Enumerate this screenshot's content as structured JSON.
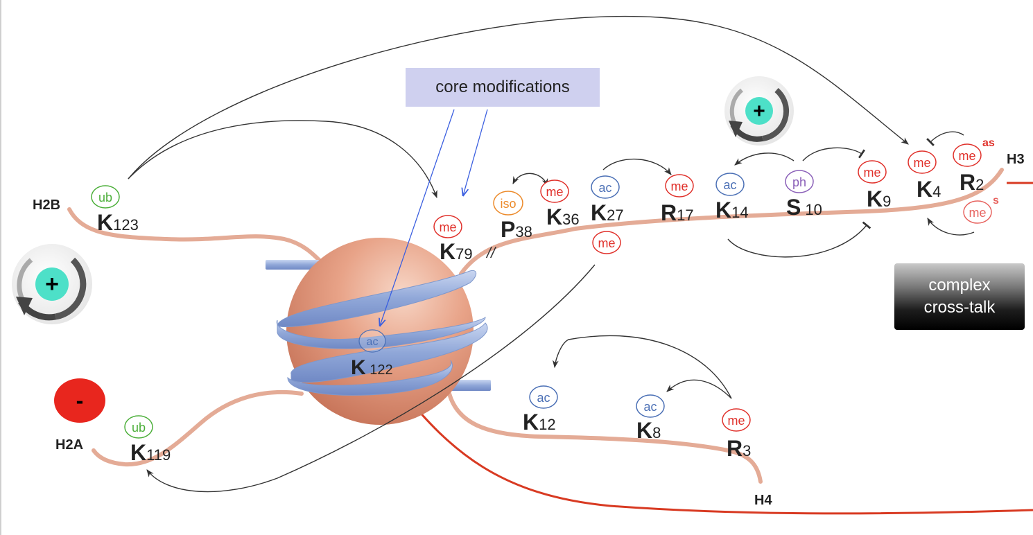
{
  "boxes": {
    "core_modifications": "core modifications",
    "complex_line1": "complex",
    "complex_line2": "cross-talk"
  },
  "histones": {
    "h2b": "H2B",
    "h3": "H3",
    "h2a": "H2A",
    "h4": "H4"
  },
  "signs": {
    "plus": "+",
    "minus": "-"
  },
  "residues": {
    "h2b_k123": {
      "letter": "K",
      "num": "123",
      "mod": "ub"
    },
    "h2a_k119": {
      "letter": "K",
      "num": "119",
      "mod": "ub"
    },
    "h3_k79": {
      "letter": "K",
      "num": "79",
      "mod": "me"
    },
    "h3_k122": {
      "letter": "K",
      "num": " 122",
      "mod": "ac"
    },
    "h3_p38": {
      "letter": "P",
      "num": "38",
      "mod": "iso"
    },
    "h3_k36": {
      "letter": "K",
      "num": "36",
      "mod": "me"
    },
    "h3_k27": {
      "letter": "K",
      "num": "27",
      "mod": "ac",
      "mod2": "me"
    },
    "h3_r17": {
      "letter": "R",
      "num": "17",
      "mod": "me"
    },
    "h3_k14": {
      "letter": "K",
      "num": "14",
      "mod": "ac"
    },
    "h3_s10": {
      "letter": "S",
      "num": "10",
      "mod": "ph"
    },
    "h3_k9": {
      "letter": "K",
      "num": "9",
      "mod": "me"
    },
    "h3_k4": {
      "letter": "K",
      "num": "4",
      "mod": "me"
    },
    "h3_r2": {
      "letter": "R",
      "num": "2",
      "mod": "me",
      "mod_sup": "as",
      "mod2": "me",
      "mod2_sup": "s"
    },
    "h4_k12": {
      "letter": "K",
      "num": "12",
      "mod": "ac"
    },
    "h4_k8": {
      "letter": "K",
      "num": "8",
      "mod": "ac"
    },
    "h4_r3": {
      "letter": "R",
      "num": "3",
      "mod": "me"
    }
  },
  "break_mark": "//",
  "colors": {
    "me": "#e0302a",
    "ac": "#4a6fb5",
    "ub": "#4caf3a",
    "ph": "#8a5fb8",
    "iso": "#ec8a2a",
    "tail": "#e4ab96",
    "dna": "#9fb3dd",
    "h4_red_line": "#d83a22",
    "plus_fill": "#4de0c8",
    "minus_fill": "#e8261e",
    "core_box": "#cfd0ef"
  }
}
